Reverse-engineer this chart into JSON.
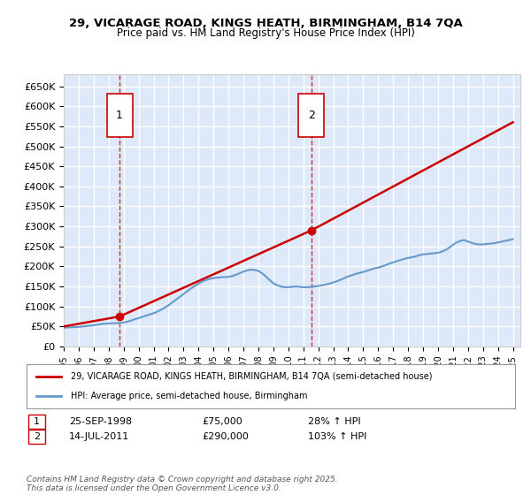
{
  "title_line1": "29, VICARAGE ROAD, KINGS HEATH, BIRMINGHAM, B14 7QA",
  "title_line2": "Price paid vs. HM Land Registry's House Price Index (HPI)",
  "ylabel": "",
  "background_color": "#ffffff",
  "plot_bg_color": "#dde8f8",
  "grid_color": "#ffffff",
  "purchase1_date": "25-SEP-1998",
  "purchase1_price": 75000,
  "purchase1_label": "28% ↑ HPI",
  "purchase2_date": "14-JUL-2011",
  "purchase2_price": 290000,
  "purchase2_label": "103% ↑ HPI",
  "ylim": [
    0,
    680000
  ],
  "yticks": [
    0,
    50000,
    100000,
    150000,
    200000,
    250000,
    300000,
    350000,
    400000,
    450000,
    500000,
    550000,
    600000,
    650000
  ],
  "legend_label1": "29, VICARAGE ROAD, KINGS HEATH, BIRMINGHAM, B14 7QA (semi-detached house)",
  "legend_label2": "HPI: Average price, semi-detached house, Birmingham",
  "footnote": "Contains HM Land Registry data © Crown copyright and database right 2025.\nThis data is licensed under the Open Government Licence v3.0.",
  "line1_color": "#cc0000",
  "line2_color": "#6699cc",
  "vline_color": "#cc0000",
  "hpi_years": [
    1995,
    1995.25,
    1995.5,
    1995.75,
    1996,
    1996.25,
    1996.5,
    1996.75,
    1997,
    1997.25,
    1997.5,
    1997.75,
    1998,
    1998.25,
    1998.5,
    1998.75,
    1999,
    1999.25,
    1999.5,
    1999.75,
    2000,
    2000.25,
    2000.5,
    2000.75,
    2001,
    2001.25,
    2001.5,
    2001.75,
    2002,
    2002.25,
    2002.5,
    2002.75,
    2003,
    2003.25,
    2003.5,
    2003.75,
    2004,
    2004.25,
    2004.5,
    2004.75,
    2005,
    2005.25,
    2005.5,
    2005.75,
    2006,
    2006.25,
    2006.5,
    2006.75,
    2007,
    2007.25,
    2007.5,
    2007.75,
    2008,
    2008.25,
    2008.5,
    2008.75,
    2009,
    2009.25,
    2009.5,
    2009.75,
    2010,
    2010.25,
    2010.5,
    2010.75,
    2011,
    2011.25,
    2011.5,
    2011.75,
    2012,
    2012.25,
    2012.5,
    2012.75,
    2013,
    2013.25,
    2013.5,
    2013.75,
    2014,
    2014.25,
    2014.5,
    2014.75,
    2015,
    2015.25,
    2015.5,
    2015.75,
    2016,
    2016.25,
    2016.5,
    2016.75,
    2017,
    2017.25,
    2017.5,
    2017.75,
    2018,
    2018.25,
    2018.5,
    2018.75,
    2019,
    2019.25,
    2019.5,
    2019.75,
    2020,
    2020.25,
    2020.5,
    2020.75,
    2021,
    2021.25,
    2021.5,
    2021.75,
    2022,
    2022.25,
    2022.5,
    2022.75,
    2023,
    2023.25,
    2023.5,
    2023.75,
    2024,
    2024.25,
    2024.5,
    2024.75,
    2025
  ],
  "hpi_values": [
    47000,
    47500,
    48000,
    48500,
    49000,
    50000,
    51000,
    52000,
    53000,
    54500,
    56000,
    57000,
    57500,
    58000,
    58500,
    59000,
    60000,
    62000,
    65000,
    68000,
    71000,
    74000,
    77000,
    80000,
    83000,
    87000,
    92000,
    97000,
    103000,
    110000,
    117000,
    124000,
    131000,
    138000,
    145000,
    151000,
    157000,
    162000,
    166000,
    169000,
    171000,
    172000,
    173000,
    173500,
    174000,
    176000,
    179000,
    183000,
    187000,
    190000,
    192000,
    191000,
    189000,
    183000,
    175000,
    166000,
    158000,
    153000,
    150000,
    148000,
    148000,
    149000,
    150000,
    149000,
    148000,
    148000,
    149000,
    150000,
    151000,
    153000,
    155000,
    157000,
    160000,
    163000,
    167000,
    171000,
    175000,
    178000,
    181000,
    184000,
    186000,
    189000,
    192000,
    195000,
    197000,
    200000,
    203000,
    207000,
    210000,
    213000,
    216000,
    219000,
    221000,
    223000,
    225000,
    228000,
    230000,
    231000,
    232000,
    233000,
    234000,
    237000,
    241000,
    247000,
    254000,
    260000,
    264000,
    266000,
    262000,
    259000,
    256000,
    255000,
    255000,
    256000,
    257000,
    258000,
    260000,
    262000,
    264000,
    266000,
    268000
  ],
  "property_years": [
    1995,
    1998.73,
    2011.54,
    2025
  ],
  "property_values": [
    50000,
    75000,
    290000,
    560000
  ],
  "purchase1_x": 1998.73,
  "purchase2_x": 2011.54,
  "xmin": 1995,
  "xmax": 2025.5
}
